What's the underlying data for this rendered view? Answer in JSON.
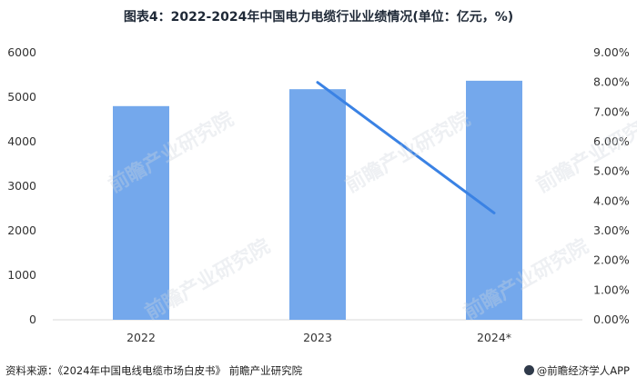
{
  "title": "图表4：2022-2024年中国电力电缆行业业绩情况(单位：亿元，%)",
  "source": "资料来源：《2024年中国电线电缆市场白皮书》 前瞻产业研究院",
  "brand": "@前瞻经济学人APP",
  "watermark": "前瞻产业研究院",
  "colors": {
    "bar": "#74a8ec",
    "line": "#3a82e4",
    "axis": "#d9d9d9",
    "text": "#333333"
  },
  "chart_data": {
    "type": "bar",
    "categories": [
      "2022",
      "2023",
      "2024*"
    ],
    "series": [
      {
        "type": "bar",
        "axis": "left",
        "values": [
          4800,
          5180,
          5370
        ]
      },
      {
        "type": "line",
        "axis": "right",
        "values": [
          null,
          8.0,
          3.6
        ]
      }
    ],
    "ylim": [
      0,
      6000
    ],
    "yticks": [
      "0",
      "1000",
      "2000",
      "3000",
      "4000",
      "5000",
      "6000"
    ],
    "y2lim": [
      0,
      9
    ],
    "y2ticks": [
      "0.00%",
      "1.00%",
      "2.00%",
      "3.00%",
      "4.00%",
      "5.00%",
      "6.00%",
      "7.00%",
      "8.00%",
      "9.00%"
    ],
    "grid": false,
    "legend": "none"
  }
}
